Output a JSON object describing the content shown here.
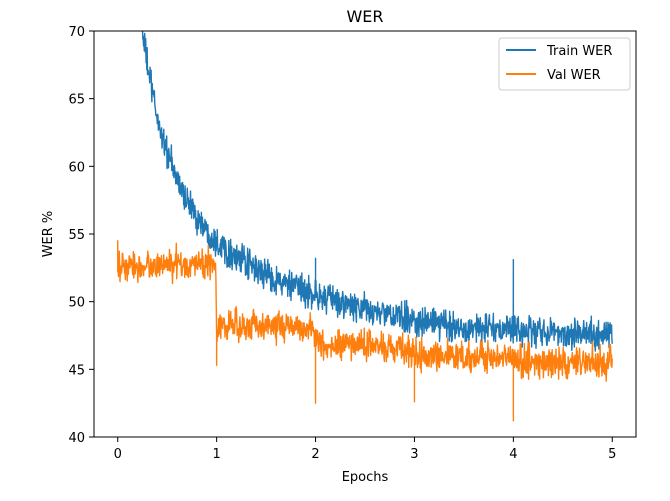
{
  "chart_data": {
    "type": "line",
    "title": "WER",
    "xlabel": "Epochs",
    "ylabel": "WER %",
    "xlim": [
      -0.24,
      5.24
    ],
    "ylim": [
      40,
      70
    ],
    "xticks": [
      0,
      1,
      2,
      3,
      4,
      5
    ],
    "yticks": [
      40,
      45,
      50,
      55,
      60,
      65,
      70
    ],
    "legend_position": "top-right",
    "grid": false,
    "series": [
      {
        "name": "Train WER",
        "color": "#1f77b4",
        "x": [
          0.25,
          0.3,
          0.35,
          0.4,
          0.5,
          0.6,
          0.7,
          0.8,
          0.9,
          1.0,
          1.2,
          1.4,
          1.6,
          1.8,
          2.0,
          2.2,
          2.5,
          3.0,
          3.5,
          4.0,
          4.5,
          5.0
        ],
        "values": [
          70.0,
          67.5,
          65.5,
          63.5,
          61.0,
          59.0,
          57.5,
          56.3,
          55.2,
          54.5,
          53.2,
          52.4,
          51.6,
          51.0,
          50.5,
          50.0,
          49.4,
          48.6,
          48.1,
          47.9,
          47.7,
          47.6
        ],
        "noise": 0.55,
        "spikes": [
          {
            "x": 2.0,
            "y": 53.2
          },
          {
            "x": 4.0,
            "y": 53.1
          }
        ]
      },
      {
        "name": "Val WER",
        "color": "#ff7f0e",
        "x": [
          0.0,
          0.5,
          0.99,
          1.0,
          1.5,
          1.99,
          2.0,
          2.5,
          2.99,
          3.0,
          3.5,
          3.99,
          4.0,
          4.5,
          5.0
        ],
        "values": [
          52.5,
          52.7,
          52.8,
          48.2,
          48.3,
          48.0,
          46.8,
          46.8,
          46.5,
          46.0,
          45.9,
          45.8,
          45.6,
          45.5,
          45.5
        ],
        "noise": 0.55,
        "spikes": [
          {
            "x": 0.0,
            "y": 54.5
          },
          {
            "x": 1.0,
            "y": 45.3
          },
          {
            "x": 2.0,
            "y": 42.5
          },
          {
            "x": 3.0,
            "y": 42.6
          },
          {
            "x": 4.0,
            "y": 41.2
          }
        ]
      }
    ]
  }
}
